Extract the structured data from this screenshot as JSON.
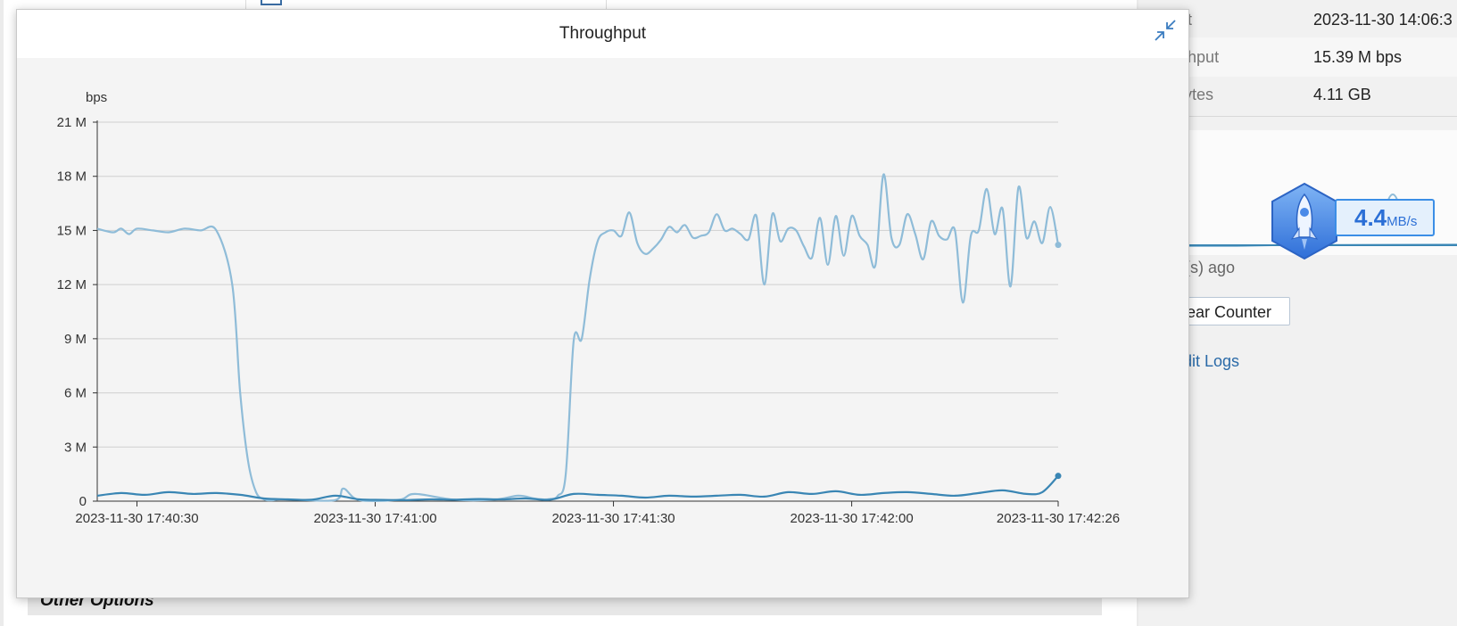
{
  "background": {
    "other_options_label": "Other Options",
    "info_rows": [
      {
        "label": "First Hit",
        "value": "2023-11-30 14:06:3"
      },
      {
        "label": "Throughput",
        "value": "15.39 M bps"
      },
      {
        "label": "Total bytes",
        "value": "4.11 GB"
      }
    ],
    "ago_text": "minute(s) ago",
    "clear_counter_label": "Clear Counter",
    "audit_logs_label": "Audit Logs",
    "speed_widget": {
      "value": "4.4",
      "unit": "MB/s"
    }
  },
  "modal": {
    "title": "Throughput",
    "collapse_icon": "collapse-arrows-icon"
  },
  "chart_data": {
    "type": "line",
    "ylabel": "bps",
    "ylim": [
      0,
      21000000
    ],
    "y_ticks": [
      {
        "value": 0,
        "label": "0"
      },
      {
        "value": 3000000,
        "label": "3 M"
      },
      {
        "value": 6000000,
        "label": "6 M"
      },
      {
        "value": 9000000,
        "label": "9 M"
      },
      {
        "value": 12000000,
        "label": "12 M"
      },
      {
        "value": 15000000,
        "label": "15 M"
      },
      {
        "value": 18000000,
        "label": "18 M"
      },
      {
        "value": 21000000,
        "label": "21 M"
      }
    ],
    "x_start": "2023-11-30 17:40:25",
    "x_end": "2023-11-30 17:42:26",
    "x_ticks": [
      {
        "value": "2023-11-30 17:40:30",
        "label": "2023-11-30 17:40:30"
      },
      {
        "value": "2023-11-30 17:41:00",
        "label": "2023-11-30 17:41:00"
      },
      {
        "value": "2023-11-30 17:41:30",
        "label": "2023-11-30 17:41:30"
      },
      {
        "value": "2023-11-30 17:42:00",
        "label": "2023-11-30 17:42:00"
      },
      {
        "value": "2023-11-30 17:42:26",
        "label": "2023-11-30 17:42:26"
      }
    ],
    "grid": true,
    "series": [
      {
        "color": "#8fbcd8",
        "x": [
          "2023-11-30 17:40:25",
          "2023-11-30 17:40:27",
          "2023-11-30 17:40:28",
          "2023-11-30 17:40:29",
          "2023-11-30 17:40:30",
          "2023-11-30 17:40:32",
          "2023-11-30 17:40:34",
          "2023-11-30 17:40:36",
          "2023-11-30 17:40:38",
          "2023-11-30 17:40:40",
          "2023-11-30 17:40:42",
          "2023-11-30 17:40:43",
          "2023-11-30 17:40:44",
          "2023-11-30 17:40:45",
          "2023-11-30 17:40:46",
          "2023-11-30 17:40:47",
          "2023-11-30 17:40:48",
          "2023-11-30 17:40:50",
          "2023-11-30 17:40:55",
          "2023-11-30 17:40:56",
          "2023-11-30 17:40:58",
          "2023-11-30 17:41:03",
          "2023-11-30 17:41:05",
          "2023-11-30 17:41:10",
          "2023-11-30 17:41:15",
          "2023-11-30 17:41:18",
          "2023-11-30 17:41:20",
          "2023-11-30 17:41:21",
          "2023-11-30 17:41:22",
          "2023-11-30 17:41:23",
          "2023-11-30 17:41:24",
          "2023-11-30 17:41:25",
          "2023-11-30 17:41:26",
          "2023-11-30 17:41:27",
          "2023-11-30 17:41:28",
          "2023-11-30 17:41:29",
          "2023-11-30 17:41:30",
          "2023-11-30 17:41:31",
          "2023-11-30 17:41:32",
          "2023-11-30 17:41:33",
          "2023-11-30 17:41:34",
          "2023-11-30 17:41:35",
          "2023-11-30 17:41:36",
          "2023-11-30 17:41:37",
          "2023-11-30 17:41:38",
          "2023-11-30 17:41:39",
          "2023-11-30 17:41:40",
          "2023-11-30 17:41:41",
          "2023-11-30 17:41:42",
          "2023-11-30 17:41:43",
          "2023-11-30 17:41:44",
          "2023-11-30 17:41:45",
          "2023-11-30 17:41:46",
          "2023-11-30 17:41:47",
          "2023-11-30 17:41:48",
          "2023-11-30 17:41:49",
          "2023-11-30 17:41:50",
          "2023-11-30 17:41:51",
          "2023-11-30 17:41:52",
          "2023-11-30 17:41:53",
          "2023-11-30 17:41:54",
          "2023-11-30 17:41:55",
          "2023-11-30 17:41:56",
          "2023-11-30 17:41:57",
          "2023-11-30 17:41:58",
          "2023-11-30 17:41:59",
          "2023-11-30 17:42:00",
          "2023-11-30 17:42:01",
          "2023-11-30 17:42:02",
          "2023-11-30 17:42:03",
          "2023-11-30 17:42:04",
          "2023-11-30 17:42:05",
          "2023-11-30 17:42:06",
          "2023-11-30 17:42:07",
          "2023-11-30 17:42:08",
          "2023-11-30 17:42:09",
          "2023-11-30 17:42:10",
          "2023-11-30 17:42:11",
          "2023-11-30 17:42:12",
          "2023-11-30 17:42:13",
          "2023-11-30 17:42:14",
          "2023-11-30 17:42:15",
          "2023-11-30 17:42:16",
          "2023-11-30 17:42:17",
          "2023-11-30 17:42:18",
          "2023-11-30 17:42:19",
          "2023-11-30 17:42:20",
          "2023-11-30 17:42:21",
          "2023-11-30 17:42:22",
          "2023-11-30 17:42:23",
          "2023-11-30 17:42:24",
          "2023-11-30 17:42:25",
          "2023-11-30 17:42:26"
        ],
        "y": [
          15100000,
          14900000,
          15100000,
          14800000,
          15100000,
          15000000,
          14900000,
          15100000,
          15000000,
          15000000,
          12000000,
          6000000,
          2200000,
          500000,
          100000,
          50000,
          100000,
          80000,
          60000,
          700000,
          60000,
          80000,
          400000,
          80000,
          80000,
          300000,
          150000,
          100000,
          120000,
          300000,
          1500000,
          8900000,
          9000000,
          12300000,
          14400000,
          14900000,
          15000000,
          14700000,
          16000000,
          14300000,
          13700000,
          14000000,
          14500000,
          15200000,
          14900000,
          15300000,
          14600000,
          14700000,
          14900000,
          15900000,
          15000000,
          15100000,
          14800000,
          14500000,
          15800000,
          12000000,
          15900000,
          14400000,
          15100000,
          15000000,
          14100000,
          13500000,
          15700000,
          13100000,
          15800000,
          13600000,
          15800000,
          14700000,
          14200000,
          13100000,
          18100000,
          14600000,
          14200000,
          15900000,
          14800000,
          13400000,
          15500000,
          14700000,
          14500000,
          15000000,
          11000000,
          14700000,
          15000000,
          17300000,
          14800000,
          16200000,
          11900000,
          17400000,
          14600000,
          15500000,
          14300000,
          16300000,
          14200000
        ],
        "end_value": 14200000
      },
      {
        "color": "#3a86b4",
        "x": [
          "2023-11-30 17:40:25",
          "2023-11-30 17:40:28",
          "2023-11-30 17:40:31",
          "2023-11-30 17:40:34",
          "2023-11-30 17:40:37",
          "2023-11-30 17:40:40",
          "2023-11-30 17:40:43",
          "2023-11-30 17:40:46",
          "2023-11-30 17:40:49",
          "2023-11-30 17:40:52",
          "2023-11-30 17:40:55",
          "2023-11-30 17:40:58",
          "2023-11-30 17:41:01",
          "2023-11-30 17:41:04",
          "2023-11-30 17:41:07",
          "2023-11-30 17:41:10",
          "2023-11-30 17:41:13",
          "2023-11-30 17:41:16",
          "2023-11-30 17:41:19",
          "2023-11-30 17:41:22",
          "2023-11-30 17:41:25",
          "2023-11-30 17:41:28",
          "2023-11-30 17:41:31",
          "2023-11-30 17:41:34",
          "2023-11-30 17:41:37",
          "2023-11-30 17:41:40",
          "2023-11-30 17:41:43",
          "2023-11-30 17:41:46",
          "2023-11-30 17:41:49",
          "2023-11-30 17:41:52",
          "2023-11-30 17:41:55",
          "2023-11-30 17:41:58",
          "2023-11-30 17:42:01",
          "2023-11-30 17:42:04",
          "2023-11-30 17:42:07",
          "2023-11-30 17:42:10",
          "2023-11-30 17:42:13",
          "2023-11-30 17:42:16",
          "2023-11-30 17:42:19",
          "2023-11-30 17:42:22",
          "2023-11-30 17:42:24",
          "2023-11-30 17:42:26"
        ],
        "y": [
          300000,
          450000,
          350000,
          500000,
          400000,
          450000,
          350000,
          150000,
          100000,
          80000,
          300000,
          100000,
          70000,
          60000,
          100000,
          80000,
          120000,
          100000,
          150000,
          80000,
          400000,
          350000,
          300000,
          200000,
          300000,
          250000,
          300000,
          350000,
          250000,
          500000,
          400000,
          550000,
          350000,
          450000,
          500000,
          400000,
          300000,
          450000,
          600000,
          400000,
          500000,
          1400000
        ],
        "end_value": 1400000
      }
    ]
  }
}
